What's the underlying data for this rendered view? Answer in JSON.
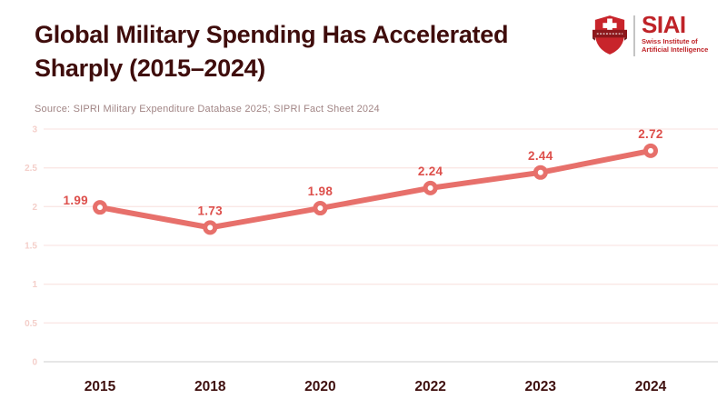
{
  "header": {
    "title_line1": "Global Military Spending Has Accelerated",
    "title_line2": "Sharply (2015–2024)",
    "title_color": "#3f0d0c"
  },
  "logo": {
    "acronym": "SIAI",
    "subtitle_line1": "Swiss Institute of",
    "subtitle_line2": "Artificial Intelligence",
    "brand_red": "#bf2328",
    "shield_red": "#c8242b",
    "banner_dark_red": "#8c181c"
  },
  "source_note": "Source: SIPRI Military Expenditure Database 2025; SIPRI Fact Sheet 2024",
  "chart_data": {
    "type": "line",
    "title": "Global Military Spending Has Accelerated Sharply (2015–2024)",
    "categories": [
      "2015",
      "2018",
      "2020",
      "2022",
      "2023",
      "2024"
    ],
    "values": [
      1.99,
      1.73,
      1.98,
      2.24,
      2.44,
      2.72
    ],
    "data_labels": [
      "1.99",
      "1.73",
      "1.98",
      "2.24",
      "2.44",
      "2.72"
    ],
    "y_ticks": [
      3,
      2.5,
      2,
      1.5,
      1,
      0.5,
      0
    ],
    "y_tick_labels": [
      "3",
      "2.5",
      "2",
      "1.5",
      "1",
      "0.5",
      "0"
    ],
    "ylim": [
      0,
      3
    ],
    "xlabel": "",
    "ylabel": "",
    "grid": true,
    "legend": false,
    "line_color": "#e7706b",
    "marker_fill": "#ffffff",
    "data_label_color": "#dd4f4b",
    "y_tick_color": "#f4cfca",
    "grid_color": "#fae7e5",
    "axis_line_color": "#d6d6d6",
    "x_label_color": "#3f100f"
  }
}
